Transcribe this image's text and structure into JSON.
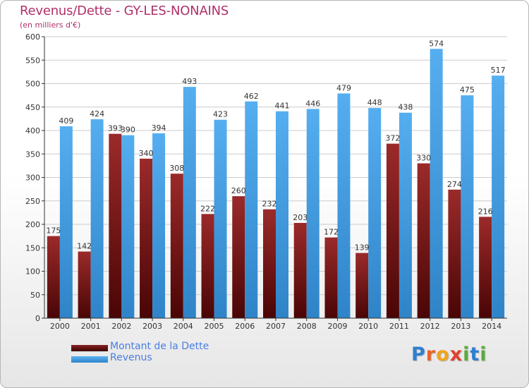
{
  "title": "Revenus/Dette - GY-LES-NONAINS",
  "subtitle": "(en milliers d'€)",
  "logo": {
    "letters": [
      "P",
      "r",
      "o",
      "x",
      "i",
      "t",
      "i"
    ],
    "colors": [
      "#2f7fd0",
      "#e8632b",
      "#f3a31a",
      "#e2402d",
      "#5aab3c",
      "#2f7fd0",
      "#5aab3c"
    ]
  },
  "colors": {
    "dette": "#7a1a1a",
    "revenus": "#3d9be0",
    "grid": "#cccccc",
    "axis": "#333333"
  },
  "chart_data": {
    "type": "bar",
    "categories": [
      "2000",
      "2001",
      "2002",
      "2003",
      "2004",
      "2005",
      "2006",
      "2007",
      "2008",
      "2009",
      "2010",
      "2011",
      "2012",
      "2013",
      "2014"
    ],
    "series": [
      {
        "name": "Montant de la Dette",
        "values": [
          175,
          142,
          393,
          340,
          308,
          222,
          260,
          232,
          203,
          172,
          139,
          372,
          330,
          274,
          216
        ]
      },
      {
        "name": "Revenus",
        "values": [
          409,
          424,
          390,
          394,
          493,
          423,
          462,
          441,
          446,
          479,
          448,
          438,
          574,
          475,
          517
        ]
      }
    ],
    "ylim": [
      0,
      600
    ],
    "yticks": [
      0,
      50,
      100,
      150,
      200,
      250,
      300,
      350,
      400,
      450,
      500,
      550,
      600
    ],
    "grid": true,
    "legend": "bottom-left"
  }
}
